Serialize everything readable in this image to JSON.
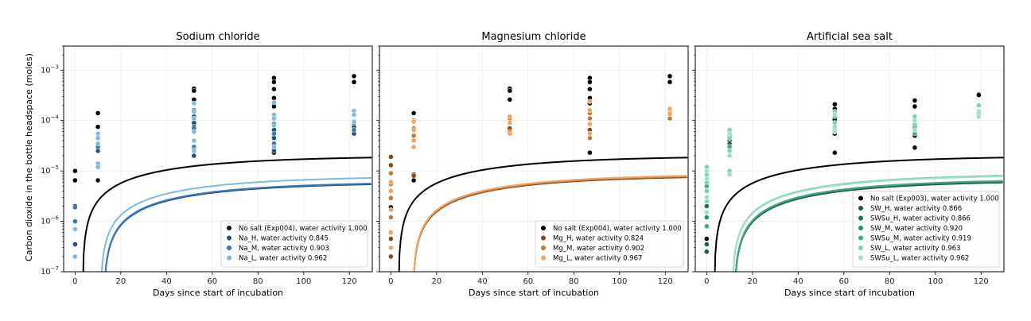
{
  "figure": {
    "ylabel": "Carbon dioxide in the bottle headspace (moles)",
    "xlabel": "Days since start of incubation"
  },
  "chart_data": [
    {
      "type": "scatter",
      "title": "Sodium chloride",
      "xlabel": "Days since start of incubation",
      "ylabel": "Carbon dioxide in the bottle headspace (moles)",
      "xlim": [
        -5,
        130
      ],
      "ylim": [
        1e-07,
        0.003
      ],
      "yscale": "log",
      "xticks": [
        0,
        20,
        40,
        60,
        80,
        100,
        120
      ],
      "grid": true,
      "legend_position": "lower-right",
      "series": [
        {
          "name": "No salt (Exp004), water activity 1.000",
          "color": "#000000",
          "points": [
            [
              0,
              1e-05
            ],
            [
              0,
              6.5e-06
            ],
            [
              0,
              2e-06
            ],
            [
              10,
              0.00014
            ],
            [
              10,
              7.5e-05
            ],
            [
              10,
              6.5e-06
            ],
            [
              52,
              0.00043
            ],
            [
              52,
              0.00039
            ],
            [
              52,
              0.00026
            ],
            [
              87,
              0.0007
            ],
            [
              87,
              0.00058
            ],
            [
              87,
              0.00042
            ],
            [
              87,
              0.00028
            ],
            [
              87,
              0.00022
            ],
            [
              87,
              0.00019
            ],
            [
              87,
              2.6e-05
            ],
            [
              87,
              2.3e-05
            ],
            [
              122,
              0.00076
            ],
            [
              122,
              0.00058
            ]
          ],
          "curve": {
            "a": 2e-05,
            "t0": 3.2,
            "k": 0.02
          }
        },
        {
          "name": "Na_H, water activity 0.845",
          "color": "#1f4e79",
          "points": [
            [
              0,
              3.5e-07
            ],
            [
              0,
              2e-07
            ],
            [
              10,
              2.5e-05
            ],
            [
              10,
              1.2e-05
            ],
            [
              52,
              0.00012
            ],
            [
              52,
              9e-05
            ],
            [
              52,
              7.5e-05
            ],
            [
              52,
              2.5e-05
            ],
            [
              52,
              2e-05
            ],
            [
              87,
              8.5e-05
            ],
            [
              87,
              6.5e-05
            ],
            [
              87,
              4.5e-05
            ],
            [
              87,
              2.5e-05
            ],
            [
              122,
              7.5e-05
            ],
            [
              122,
              5.5e-05
            ]
          ],
          "curve": {
            "a": 6e-06,
            "t0": 12.5,
            "k": 0.02
          }
        },
        {
          "name": "Na_M, water activity 0.903",
          "color": "#3a78b5",
          "points": [
            [
              0,
              1.9e-06
            ],
            [
              0,
              1e-06
            ],
            [
              10,
              4.5e-05
            ],
            [
              10,
              3e-05
            ],
            [
              52,
              0.00016
            ],
            [
              52,
              7e-05
            ],
            [
              52,
              3e-05
            ],
            [
              87,
              0.00011
            ],
            [
              87,
              5.5e-05
            ],
            [
              87,
              3.5e-05
            ],
            [
              122,
              9e-05
            ],
            [
              122,
              6.5e-05
            ]
          ],
          "curve": {
            "a": 6.2e-06,
            "t0": 12.5,
            "k": 0.02
          }
        },
        {
          "name": "Na_L, water activity 0.962",
          "color": "#7fb8e0",
          "points": [
            [
              0,
              7e-07
            ],
            [
              0,
              2e-07
            ],
            [
              10,
              5.5e-05
            ],
            [
              10,
              4.5e-05
            ],
            [
              10,
              3.5e-05
            ],
            [
              10,
              1.4e-05
            ],
            [
              10,
              1.2e-05
            ],
            [
              52,
              0.00022
            ],
            [
              52,
              0.00015
            ],
            [
              52,
              0.00011
            ],
            [
              52,
              6e-05
            ],
            [
              52,
              4e-05
            ],
            [
              52,
              2.6e-05
            ],
            [
              87,
              0.00023
            ],
            [
              87,
              0.00013
            ],
            [
              87,
              0.00011
            ],
            [
              87,
              8e-05
            ],
            [
              87,
              3e-05
            ],
            [
              122,
              0.000155
            ],
            [
              122,
              0.00013
            ],
            [
              122,
              9.5e-05
            ]
          ],
          "curve": {
            "a": 8e-06,
            "t0": 11.0,
            "k": 0.02
          }
        }
      ]
    },
    {
      "type": "scatter",
      "title": "Magnesium chloride",
      "xlabel": "Days since start of incubation",
      "xlim": [
        -5,
        130
      ],
      "ylim": [
        1e-07,
        0.003
      ],
      "yscale": "log",
      "xticks": [
        0,
        20,
        40,
        60,
        80,
        100,
        120
      ],
      "grid": true,
      "legend_position": "lower-right",
      "series": [
        {
          "name": "No salt (Exp004), water activity 1.000",
          "color": "#000000",
          "points": [
            [
              0,
              1.9e-06
            ],
            [
              10,
              0.00014
            ],
            [
              10,
              6.5e-06
            ],
            [
              52,
              0.00043
            ],
            [
              52,
              0.00039
            ],
            [
              52,
              0.00026
            ],
            [
              87,
              0.0007
            ],
            [
              87,
              0.00058
            ],
            [
              87,
              0.00042
            ],
            [
              87,
              0.00028
            ],
            [
              87,
              0.00022
            ],
            [
              87,
              2.3e-05
            ],
            [
              122,
              0.00076
            ],
            [
              122,
              0.00058
            ]
          ],
          "curve": {
            "a": 2e-05,
            "t0": 3.2,
            "k": 0.02
          }
        },
        {
          "name": "Mg_H, water activity 0.824",
          "color": "#8b4513",
          "points": [
            [
              0,
              1.9e-05
            ],
            [
              0,
              1.3e-05
            ],
            [
              0,
              4.5e-07
            ],
            [
              0,
              2e-07
            ],
            [
              10,
              8.5e-06
            ],
            [
              10,
              8e-06
            ],
            [
              52,
              7e-05
            ],
            [
              87,
              6.5e-05
            ],
            [
              122,
              0.00011
            ]
          ],
          "curve": {
            "a": 8.2e-06,
            "t0": 9.5,
            "k": 0.02
          }
        },
        {
          "name": "Mg_M, water activity 0.902",
          "color": "#c9772e",
          "points": [
            [
              0,
              9e-06
            ],
            [
              0,
              5.5e-06
            ],
            [
              0,
              2.9e-06
            ],
            [
              0,
              1.2e-06
            ],
            [
              10,
              0.0001
            ],
            [
              10,
              7e-05
            ],
            [
              10,
              5e-05
            ],
            [
              52,
              0.00011
            ],
            [
              52,
              6e-05
            ],
            [
              87,
              0.00014
            ],
            [
              87,
              0.00011
            ],
            [
              87,
              4.5e-05
            ],
            [
              122,
              0.000145
            ],
            [
              122,
              0.00011
            ]
          ],
          "curve": {
            "a": 8.5e-06,
            "t0": 9.5,
            "k": 0.02
          }
        },
        {
          "name": "Mg_L, water activity 0.967",
          "color": "#f0a468",
          "points": [
            [
              0,
              6e-06
            ],
            [
              0,
              4e-06
            ],
            [
              0,
              1.7e-06
            ],
            [
              0,
              6e-07
            ],
            [
              0,
              3e-07
            ],
            [
              10,
              9.5e-05
            ],
            [
              10,
              6.5e-05
            ],
            [
              10,
              4e-05
            ],
            [
              10,
              3e-05
            ],
            [
              52,
              0.00012
            ],
            [
              52,
              9e-05
            ],
            [
              52,
              5.5e-05
            ],
            [
              87,
              0.00024
            ],
            [
              87,
              0.00016
            ],
            [
              87,
              8.5e-05
            ],
            [
              87,
              5.5e-05
            ],
            [
              122,
              0.00017
            ],
            [
              122,
              0.000135
            ]
          ],
          "curve": {
            "a": 8.8e-06,
            "t0": 9.5,
            "k": 0.02
          }
        }
      ]
    },
    {
      "type": "scatter",
      "title": "Artificial sea salt",
      "xlabel": "Days since start of incubation",
      "xlim": [
        -5,
        130
      ],
      "ylim": [
        1e-07,
        0.003
      ],
      "yscale": "log",
      "xticks": [
        0,
        20,
        40,
        60,
        80,
        100,
        120
      ],
      "grid": true,
      "legend_position": "lower-right",
      "series": [
        {
          "name": "No salt (Exp003), water activity 1.000",
          "color": "#000000",
          "points": [
            [
              0,
              4.5e-07
            ],
            [
              10,
              1e-05
            ],
            [
              56,
              0.00021
            ],
            [
              56,
              0.00017
            ],
            [
              56,
              0.00015
            ],
            [
              56,
              0.000105
            ],
            [
              56,
              5.5e-05
            ],
            [
              56,
              2.3e-05
            ],
            [
              91,
              0.00025
            ],
            [
              91,
              0.00019
            ],
            [
              91,
              5e-05
            ],
            [
              91,
              2.9e-05
            ],
            [
              119,
              0.00033
            ],
            [
              119,
              0.00032
            ]
          ],
          "curve": {
            "a": 2e-05,
            "t0": 3.2,
            "k": 0.02
          }
        },
        {
          "name": "SW_H, water activity 0.866",
          "color": "#1d5a4e",
          "points": [
            [
              0,
              3.5e-07
            ],
            [
              0,
              2.5e-07
            ],
            [
              10,
              4e-05
            ],
            [
              56,
              7e-05
            ],
            [
              91,
              8e-05
            ],
            [
              119,
              0.00012
            ]
          ],
          "curve": {
            "a": 6.5e-06,
            "t0": 12.0,
            "k": 0.02
          }
        },
        {
          "name": "SWSu_H, water activity 0.866",
          "color": "#236b5a",
          "points": [
            [
              0,
              2e-06
            ],
            [
              0,
              1.5e-06
            ],
            [
              10,
              3.5e-05
            ],
            [
              56,
              6e-05
            ],
            [
              91,
              7e-05
            ]
          ],
          "curve": {
            "a": 6.7e-06,
            "t0": 12.0,
            "k": 0.02
          }
        },
        {
          "name": "SW_M, water activity 0.920",
          "color": "#2e8b6e",
          "points": [
            [
              0,
              3e-06
            ],
            [
              0,
              1.2e-06
            ],
            [
              10,
              5e-05
            ],
            [
              56,
              9e-05
            ],
            [
              91,
              0.0001
            ],
            [
              119,
              0.00013
            ]
          ],
          "curve": {
            "a": 6.9e-06,
            "t0": 12.0,
            "k": 0.02
          }
        },
        {
          "name": "SWSu_M, water activity 0.919",
          "color": "#45a883",
          "points": [
            [
              0,
              5e-06
            ],
            [
              0,
              8e-07
            ],
            [
              10,
              6e-05
            ],
            [
              10,
              3e-05
            ],
            [
              56,
              0.00012
            ],
            [
              91,
              7.5e-05
            ],
            [
              91,
              5.5e-05
            ]
          ],
          "curve": {
            "a": 7e-06,
            "t0": 12.0,
            "k": 0.02
          }
        },
        {
          "name": "SW_L, water activity 0.963",
          "color": "#7fd1b0",
          "points": [
            [
              0,
              1.2e-05
            ],
            [
              0,
              8.5e-06
            ],
            [
              0,
              6e-06
            ],
            [
              0,
              4e-06
            ],
            [
              0,
              2.5e-06
            ],
            [
              10,
              6.5e-05
            ],
            [
              10,
              4.5e-05
            ],
            [
              10,
              2.5e-05
            ],
            [
              10,
              1e-05
            ],
            [
              56,
              0.00015
            ],
            [
              56,
              9e-05
            ],
            [
              56,
              6.5e-05
            ],
            [
              91,
              0.00012
            ],
            [
              91,
              8.5e-05
            ],
            [
              119,
              0.0002
            ],
            [
              119,
              0.00015
            ]
          ],
          "curve": {
            "a": 8.9e-06,
            "t0": 11.0,
            "k": 0.02
          }
        },
        {
          "name": "SWSu_L, water activity 0.962",
          "color": "#9fe0c4",
          "points": [
            [
              0,
              1e-05
            ],
            [
              0,
              7e-06
            ],
            [
              0,
              3e-06
            ],
            [
              0,
              1.5e-06
            ],
            [
              10,
              5.5e-05
            ],
            [
              10,
              2e-05
            ],
            [
              10,
              8.5e-06
            ],
            [
              56,
              0.00013
            ],
            [
              56,
              7.5e-05
            ],
            [
              56,
              6e-05
            ],
            [
              91,
              0.0001
            ],
            [
              91,
              6.5e-05
            ],
            [
              119,
              0.00014
            ],
            [
              119,
              0.00012
            ]
          ],
          "curve": {
            "a": 8.6e-06,
            "t0": 11.0,
            "k": 0.02
          }
        }
      ]
    }
  ]
}
